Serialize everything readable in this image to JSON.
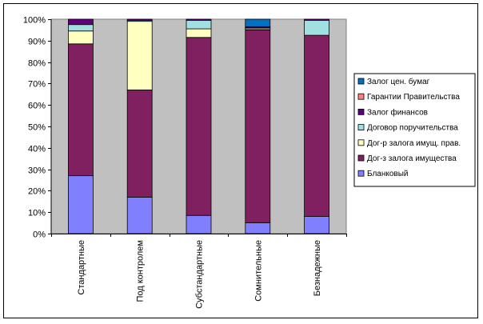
{
  "chart_data": {
    "type": "bar",
    "stacked": true,
    "percent": true,
    "categories": [
      "Стандартные",
      "Под контролем",
      "Субстандартные",
      "Сомнительные",
      "Безнадежные"
    ],
    "series": [
      {
        "name": "Бланковый",
        "color": "#8080ff",
        "values": [
          27,
          17,
          8.5,
          5,
          8
        ]
      },
      {
        "name": "Дог-з залога имущества",
        "color": "#802060",
        "values": [
          61.5,
          50,
          83,
          90,
          84.5
        ]
      },
      {
        "name": "Дог-р залога имущ. прав.",
        "color": "#ffffc0",
        "values": [
          6,
          32,
          4,
          0.5,
          0
        ]
      },
      {
        "name": "Договор поручительства",
        "color": "#a0e0e0",
        "values": [
          3,
          0.5,
          4,
          0.5,
          7
        ]
      },
      {
        "name": "Залог финансов",
        "color": "#600080",
        "values": [
          2.5,
          0.5,
          0.5,
          0.5,
          0.5
        ]
      },
      {
        "name": "Гарантии Правительства",
        "color": "#ff8080",
        "values": [
          0,
          0,
          0,
          0,
          0
        ]
      },
      {
        "name": "Залог цен. бумаг",
        "color": "#0070c0",
        "values": [
          0,
          0,
          0,
          3.5,
          0
        ]
      }
    ],
    "legend_order": [
      "Залог цен. бумаг",
      "Гарантии Правительства",
      "Залог финансов",
      "Договор поручительства",
      "Дог-р залога имущ. прав.",
      "Дог-з залога имущества",
      "Бланковый"
    ],
    "legend_position": "right",
    "ylim": [
      0,
      100
    ],
    "yticks": [
      "0%",
      "10%",
      "20%",
      "30%",
      "40%",
      "50%",
      "60%",
      "70%",
      "80%",
      "90%",
      "100%"
    ],
    "plot_background": "#c0c0c0",
    "grid": false
  }
}
